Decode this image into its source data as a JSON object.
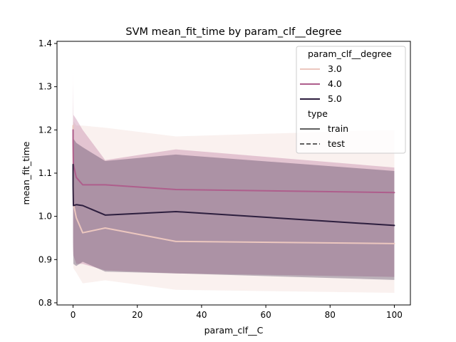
{
  "chart_data": {
    "type": "line",
    "title": "SVM mean_fit_time by param_clf__degree",
    "xlabel": "param_clf__C",
    "ylabel": "mean_fit_time",
    "xlim": [
      -5,
      105
    ],
    "ylim": [
      0.795,
      1.405
    ],
    "x_ticks": [
      0,
      20,
      40,
      60,
      80,
      100
    ],
    "y_ticks": [
      0.8,
      0.9,
      1.0,
      1.1,
      1.2,
      1.3,
      1.4
    ],
    "grid": false,
    "legend": {
      "placement": "top-right",
      "hue_title": "param_clf__degree",
      "style_title": "type",
      "style_entries": [
        {
          "label": "train",
          "dash": "solid"
        },
        {
          "label": "test",
          "dash": "dashed"
        }
      ]
    },
    "x": [
      0.001,
      0.01,
      0.1,
      1,
      3,
      10,
      32,
      100
    ],
    "series": [
      {
        "name": "3.0",
        "color": "#ecc7bf",
        "type": "train",
        "values": [
          1.21,
          1.15,
          1.03,
          0.997,
          0.962,
          0.973,
          0.942,
          0.937
        ],
        "ci_lower": [
          1.0,
          0.95,
          0.88,
          0.87,
          0.845,
          0.852,
          0.83,
          0.823
        ],
        "ci_upper": [
          1.36,
          1.3,
          1.22,
          1.21,
          1.21,
          1.205,
          1.185,
          1.2
        ],
        "band_opacity": 0.25
      },
      {
        "name": "4.0",
        "color": "#ae5e8c",
        "type": "train",
        "values": [
          1.2,
          1.17,
          1.12,
          1.09,
          1.073,
          1.073,
          1.062,
          1.055
        ],
        "ci_lower": [
          0.96,
          0.93,
          0.91,
          0.89,
          0.89,
          0.875,
          0.868,
          0.86
        ],
        "ci_upper": [
          1.37,
          1.31,
          1.235,
          1.225,
          1.2,
          1.13,
          1.155,
          1.113
        ],
        "band_opacity": 0.3
      },
      {
        "name": "5.0",
        "color": "#2d1e3e",
        "type": "train",
        "values": [
          1.12,
          1.07,
          1.025,
          1.027,
          1.025,
          1.003,
          1.011,
          0.979
        ],
        "ci_lower": [
          0.98,
          0.94,
          0.89,
          0.885,
          0.895,
          0.872,
          0.868,
          0.853
        ],
        "ci_upper": [
          1.27,
          1.22,
          1.18,
          1.17,
          1.16,
          1.128,
          1.143,
          1.105
        ],
        "band_opacity": 0.3
      }
    ]
  }
}
